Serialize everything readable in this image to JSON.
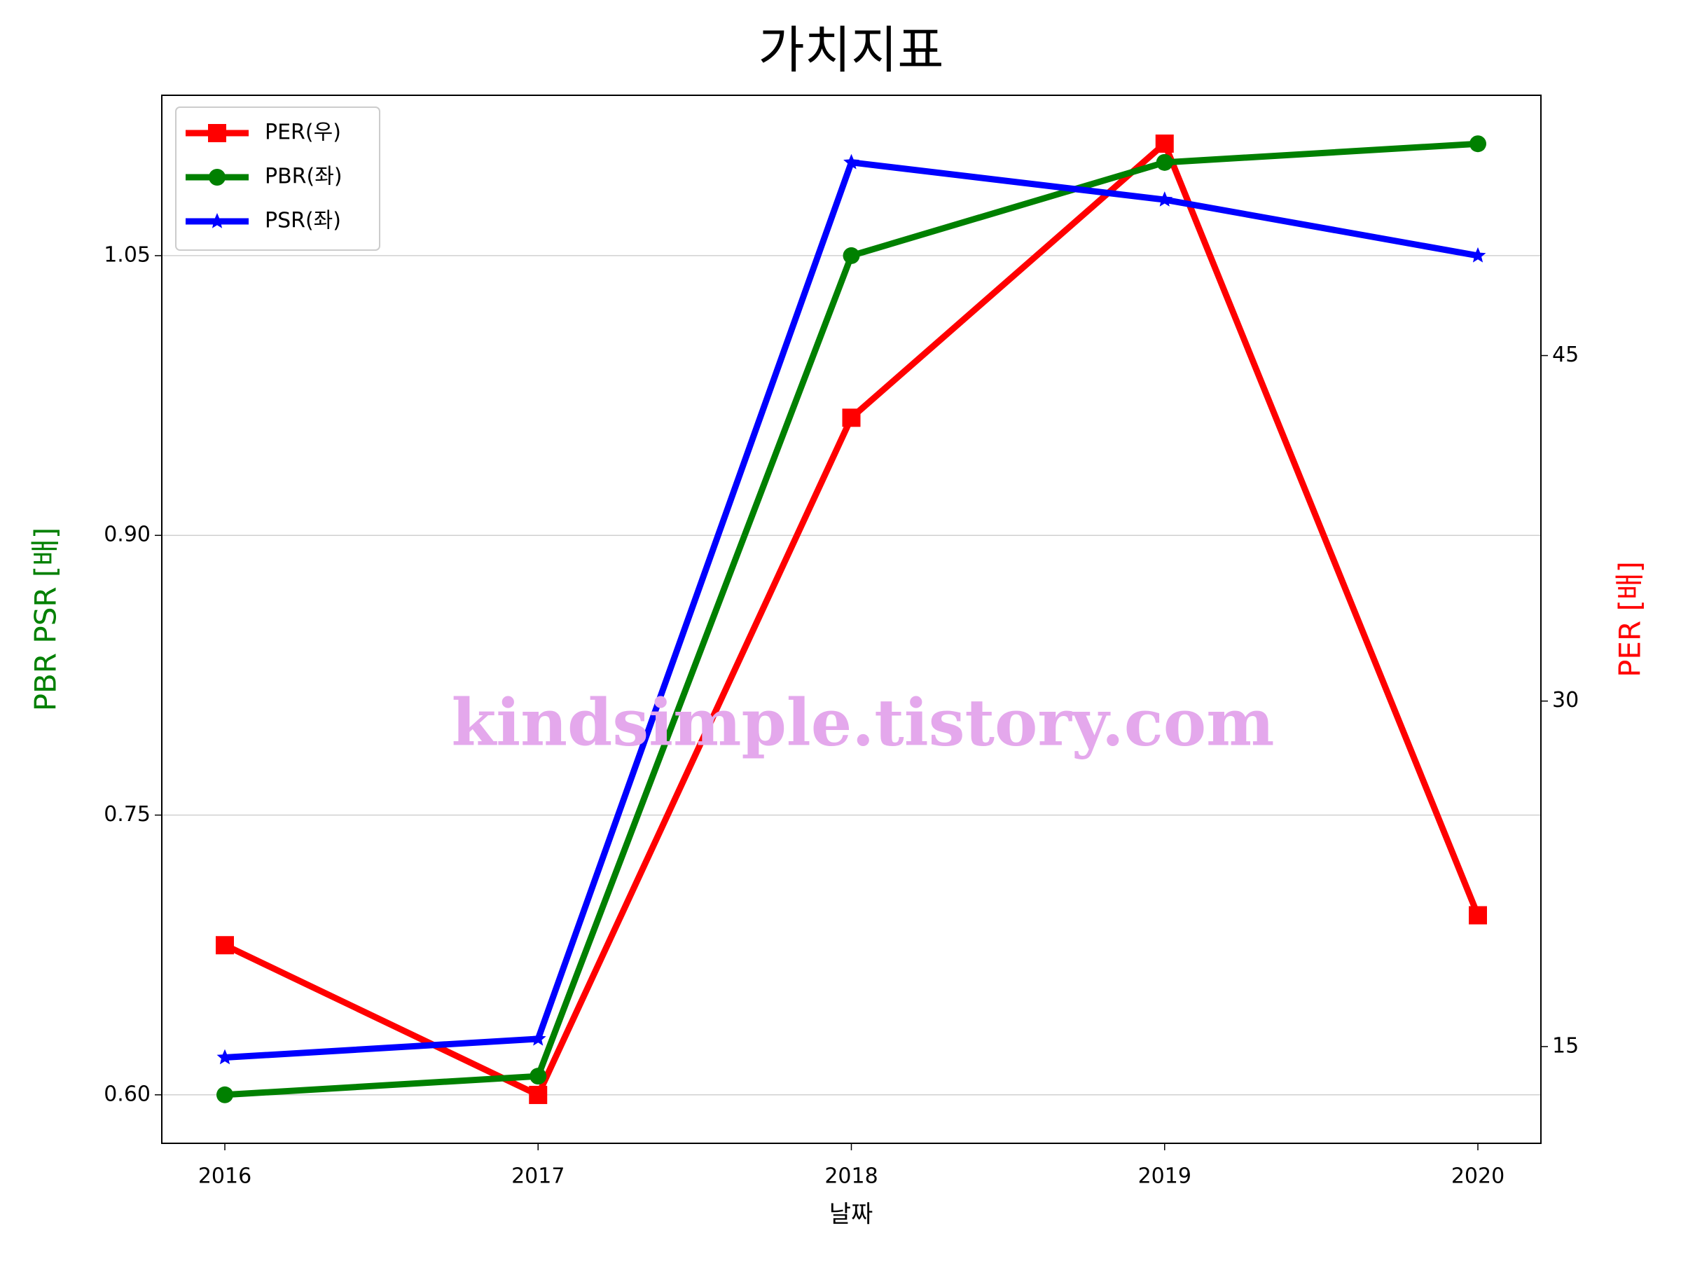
{
  "chart_data": {
    "type": "line",
    "title": "가치지표",
    "xlabel": "날짜",
    "ylabel": "PBR PSR [배]",
    "y2label": "PER [배]",
    "ylabel_color": "#008000",
    "y2label_color": "#ff0000",
    "annotation": "kindsimple.tistory.com",
    "annotation_color": "#e4a8ec",
    "categories": [
      "2016",
      "2017",
      "2018",
      "2019",
      "2020"
    ],
    "series": [
      {
        "name": "PER(우)",
        "color": "#ff0000",
        "marker": "square",
        "axis": "y2",
        "values": [
          19.4,
          12.9,
          42.3,
          54.2,
          20.7
        ]
      },
      {
        "name": "PBR(좌)",
        "color": "#008000",
        "marker": "circle",
        "values": [
          0.6,
          0.61,
          1.05,
          1.1,
          1.11
        ]
      },
      {
        "name": "PSR(좌)",
        "color": "#0000ff",
        "marker": "star",
        "values": [
          0.62,
          0.63,
          1.1,
          1.08,
          1.05
        ]
      }
    ],
    "ylim": [
      0.574,
      1.136
    ],
    "yticks": [
      {
        "value": 0.6,
        "label": "0.60"
      },
      {
        "value": 0.75,
        "label": "0.75"
      },
      {
        "value": 0.9,
        "label": "0.90"
      },
      {
        "value": 1.05,
        "label": "1.05"
      }
    ],
    "y2lim": [
      10.8,
      56.3
    ],
    "y2ticks": [
      15,
      30,
      45
    ],
    "grid": true,
    "legend": "upper left"
  }
}
